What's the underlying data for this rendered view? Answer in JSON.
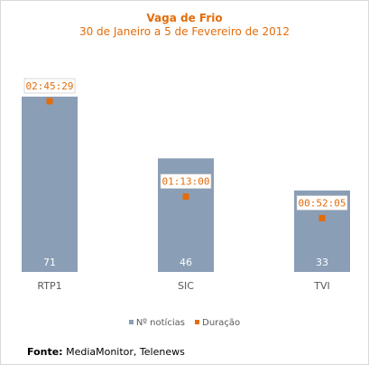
{
  "chart_data": {
    "type": "bar",
    "title": "Vaga de Frio",
    "subtitle": "30 de Janeiro a 5 de Fevereiro de 2012",
    "categories": [
      "RTP1",
      "SIC",
      "TVI"
    ],
    "series": [
      {
        "name": "Nº notícias",
        "type": "bar",
        "values": [
          71,
          46,
          33
        ],
        "value_labels": [
          "71",
          "46",
          "33"
        ]
      },
      {
        "name": "Duração",
        "type": "marker",
        "values": [
          "02:45:29",
          "01:13:00",
          "00:52:05"
        ],
        "seconds": [
          9929,
          4380,
          3125
        ]
      }
    ],
    "ylim": [
      0,
      75
    ],
    "grid": false,
    "legend": "bottom"
  },
  "colors": {
    "bar": "#8a9eb6",
    "accent": "#e46c0a",
    "axis_text": "#595959"
  },
  "source": {
    "label": "Fonte:",
    "text": " MediaMonitor, Telenews"
  }
}
